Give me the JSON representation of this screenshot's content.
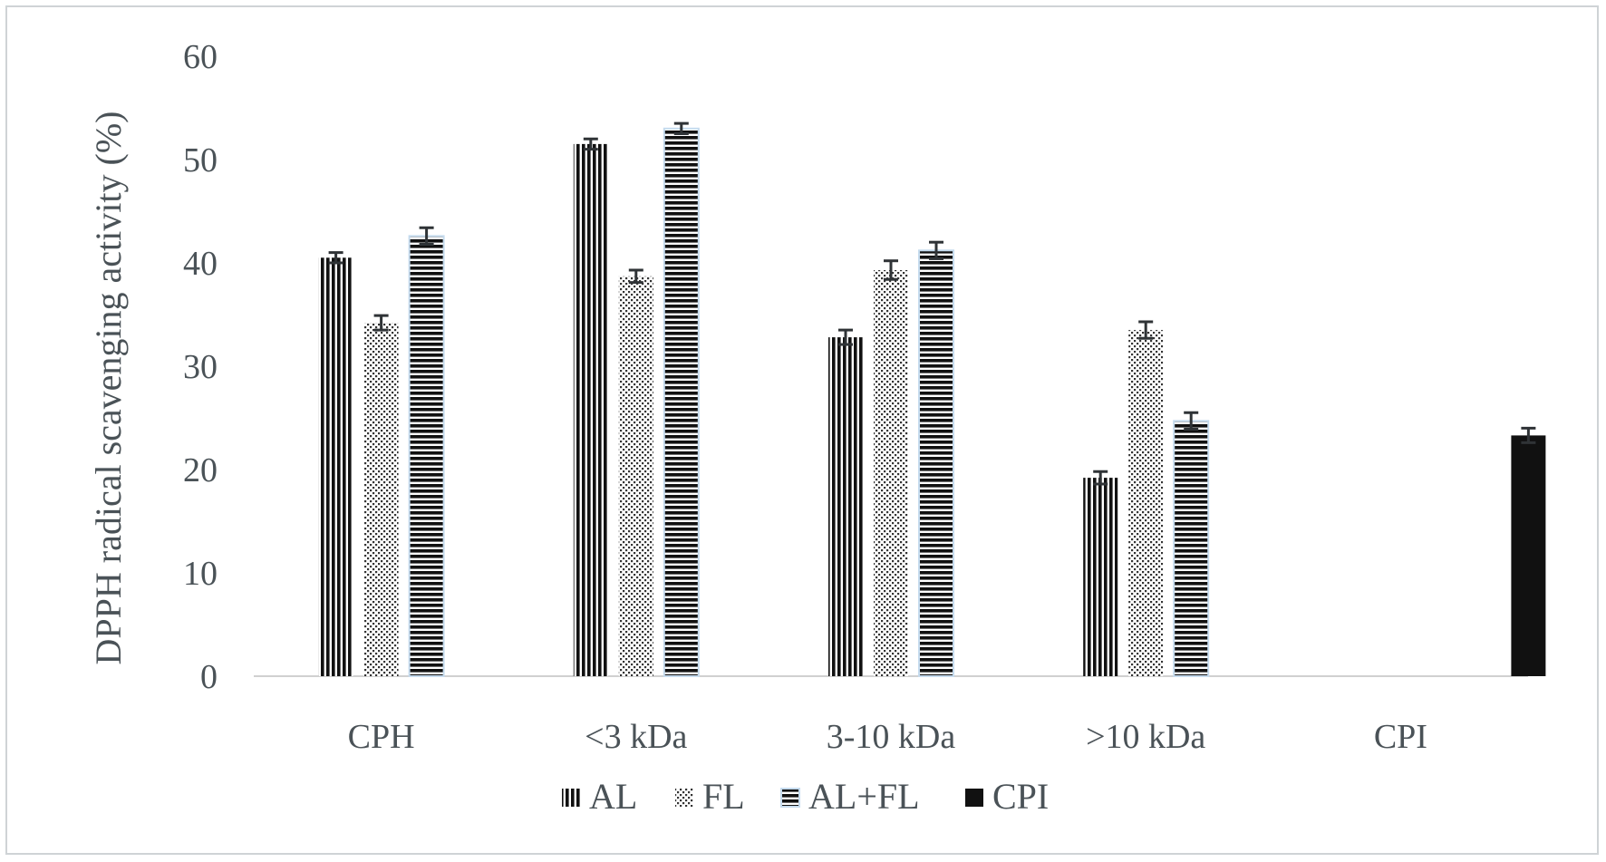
{
  "chart_data": {
    "type": "bar",
    "title": "",
    "xlabel": "",
    "ylabel": "DPPH radical scavenging activity (%)",
    "ylim": [
      0,
      60
    ],
    "yticks": [
      0,
      10,
      20,
      30,
      40,
      50,
      60
    ],
    "grid": false,
    "legend_position": "bottom",
    "categories": [
      "CPH",
      "<3 kDa",
      "3-10 kDa",
      ">10 kDa",
      "CPI"
    ],
    "series": [
      {
        "name": "AL",
        "pattern": "vertical-lines",
        "values": [
          40.5,
          51.5,
          32.8,
          19.2,
          null
        ],
        "errors": [
          0.5,
          0.5,
          0.7,
          0.6,
          null
        ]
      },
      {
        "name": "FL",
        "pattern": "dots",
        "values": [
          34.2,
          38.7,
          39.3,
          33.5,
          null
        ],
        "errors": [
          0.7,
          0.6,
          0.9,
          0.8,
          null
        ]
      },
      {
        "name": "AL+FL",
        "pattern": "horizontal-lines",
        "values": [
          42.6,
          53.0,
          41.2,
          24.7,
          null
        ],
        "errors": [
          0.8,
          0.5,
          0.8,
          0.8,
          null
        ]
      },
      {
        "name": "CPI",
        "pattern": "solid",
        "values": [
          null,
          null,
          null,
          null,
          23.3
        ],
        "errors": [
          null,
          null,
          null,
          null,
          0.7
        ]
      }
    ],
    "colors": {
      "bar_ink": "#111111",
      "axis_line": "#d0d0d0",
      "text": "#4a5257",
      "error_bar": "#2f3336",
      "al_fl_outline": "#c5dbee"
    }
  }
}
